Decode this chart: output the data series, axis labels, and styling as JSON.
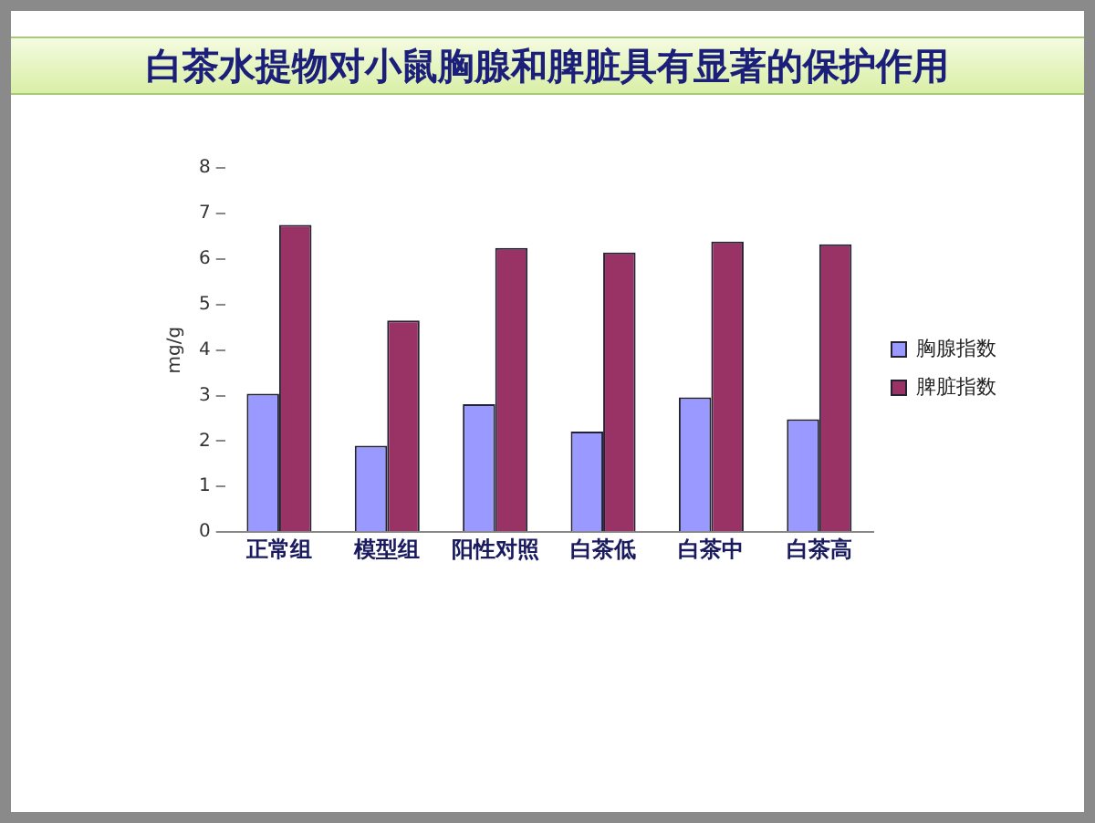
{
  "chart_data": {
    "type": "bar",
    "title": "白茶水提物对小鼠胸腺和脾脏具有显著的保护作用",
    "ylabel": "mg/g",
    "categories": [
      "正常组",
      "模型组",
      "阳性对照",
      "白茶低",
      "白茶中",
      "白茶高"
    ],
    "series": [
      {
        "name": "胸腺指数",
        "color": "#9999ff",
        "values": [
          3.04,
          1.9,
          2.81,
          2.21,
          2.96,
          2.48
        ]
      },
      {
        "name": "脾脏指数",
        "color": "#993366",
        "values": [
          6.75,
          4.65,
          6.24,
          6.14,
          6.38,
          6.32
        ]
      }
    ],
    "ylim": [
      0,
      8
    ],
    "yticks": [
      0,
      1,
      2,
      3,
      4,
      5,
      6,
      7,
      8
    ],
    "grid": false,
    "legend": "right"
  }
}
